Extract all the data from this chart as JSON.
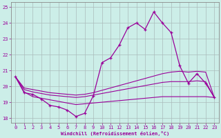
{
  "xlabel": "Windchill (Refroidissement éolien,°C)",
  "background_color": "#cceee8",
  "line_color": "#990099",
  "grid_color": "#aabbbb",
  "x_values": [
    0,
    1,
    2,
    3,
    4,
    5,
    6,
    7,
    8,
    9,
    10,
    11,
    12,
    13,
    14,
    15,
    16,
    17,
    18,
    19,
    20,
    21,
    22,
    23
  ],
  "y_main": [
    20.6,
    19.6,
    19.5,
    19.2,
    18.8,
    18.7,
    18.5,
    18.1,
    18.3,
    19.4,
    21.5,
    21.8,
    22.6,
    23.7,
    24.0,
    23.6,
    24.7,
    24.0,
    23.4,
    21.3,
    20.2,
    20.8,
    20.2,
    19.3
  ],
  "y_trend_bottom": [
    20.6,
    19.65,
    19.35,
    19.25,
    19.15,
    19.05,
    18.95,
    18.85,
    18.9,
    18.95,
    19.0,
    19.05,
    19.1,
    19.15,
    19.2,
    19.25,
    19.3,
    19.35,
    19.35,
    19.35,
    19.35,
    19.35,
    19.35,
    19.3
  ],
  "y_trend_mid1": [
    20.6,
    19.8,
    19.65,
    19.55,
    19.45,
    19.4,
    19.35,
    19.3,
    19.35,
    19.45,
    19.55,
    19.65,
    19.75,
    19.85,
    19.95,
    20.05,
    20.15,
    20.25,
    20.3,
    20.3,
    20.3,
    20.35,
    20.3,
    19.3
  ],
  "y_trend_top": [
    20.6,
    19.9,
    19.8,
    19.7,
    19.6,
    19.55,
    19.5,
    19.45,
    19.5,
    19.6,
    19.75,
    19.9,
    20.05,
    20.2,
    20.35,
    20.5,
    20.65,
    20.8,
    20.9,
    20.95,
    20.9,
    20.95,
    20.9,
    19.3
  ],
  "ylim": [
    17.7,
    25.3
  ],
  "xlim": [
    -0.5,
    23.5
  ],
  "yticks": [
    18,
    19,
    20,
    21,
    22,
    23,
    24,
    25
  ],
  "xticks": [
    0,
    1,
    2,
    3,
    4,
    5,
    6,
    7,
    8,
    9,
    10,
    11,
    12,
    13,
    14,
    15,
    16,
    17,
    18,
    19,
    20,
    21,
    22,
    23
  ]
}
